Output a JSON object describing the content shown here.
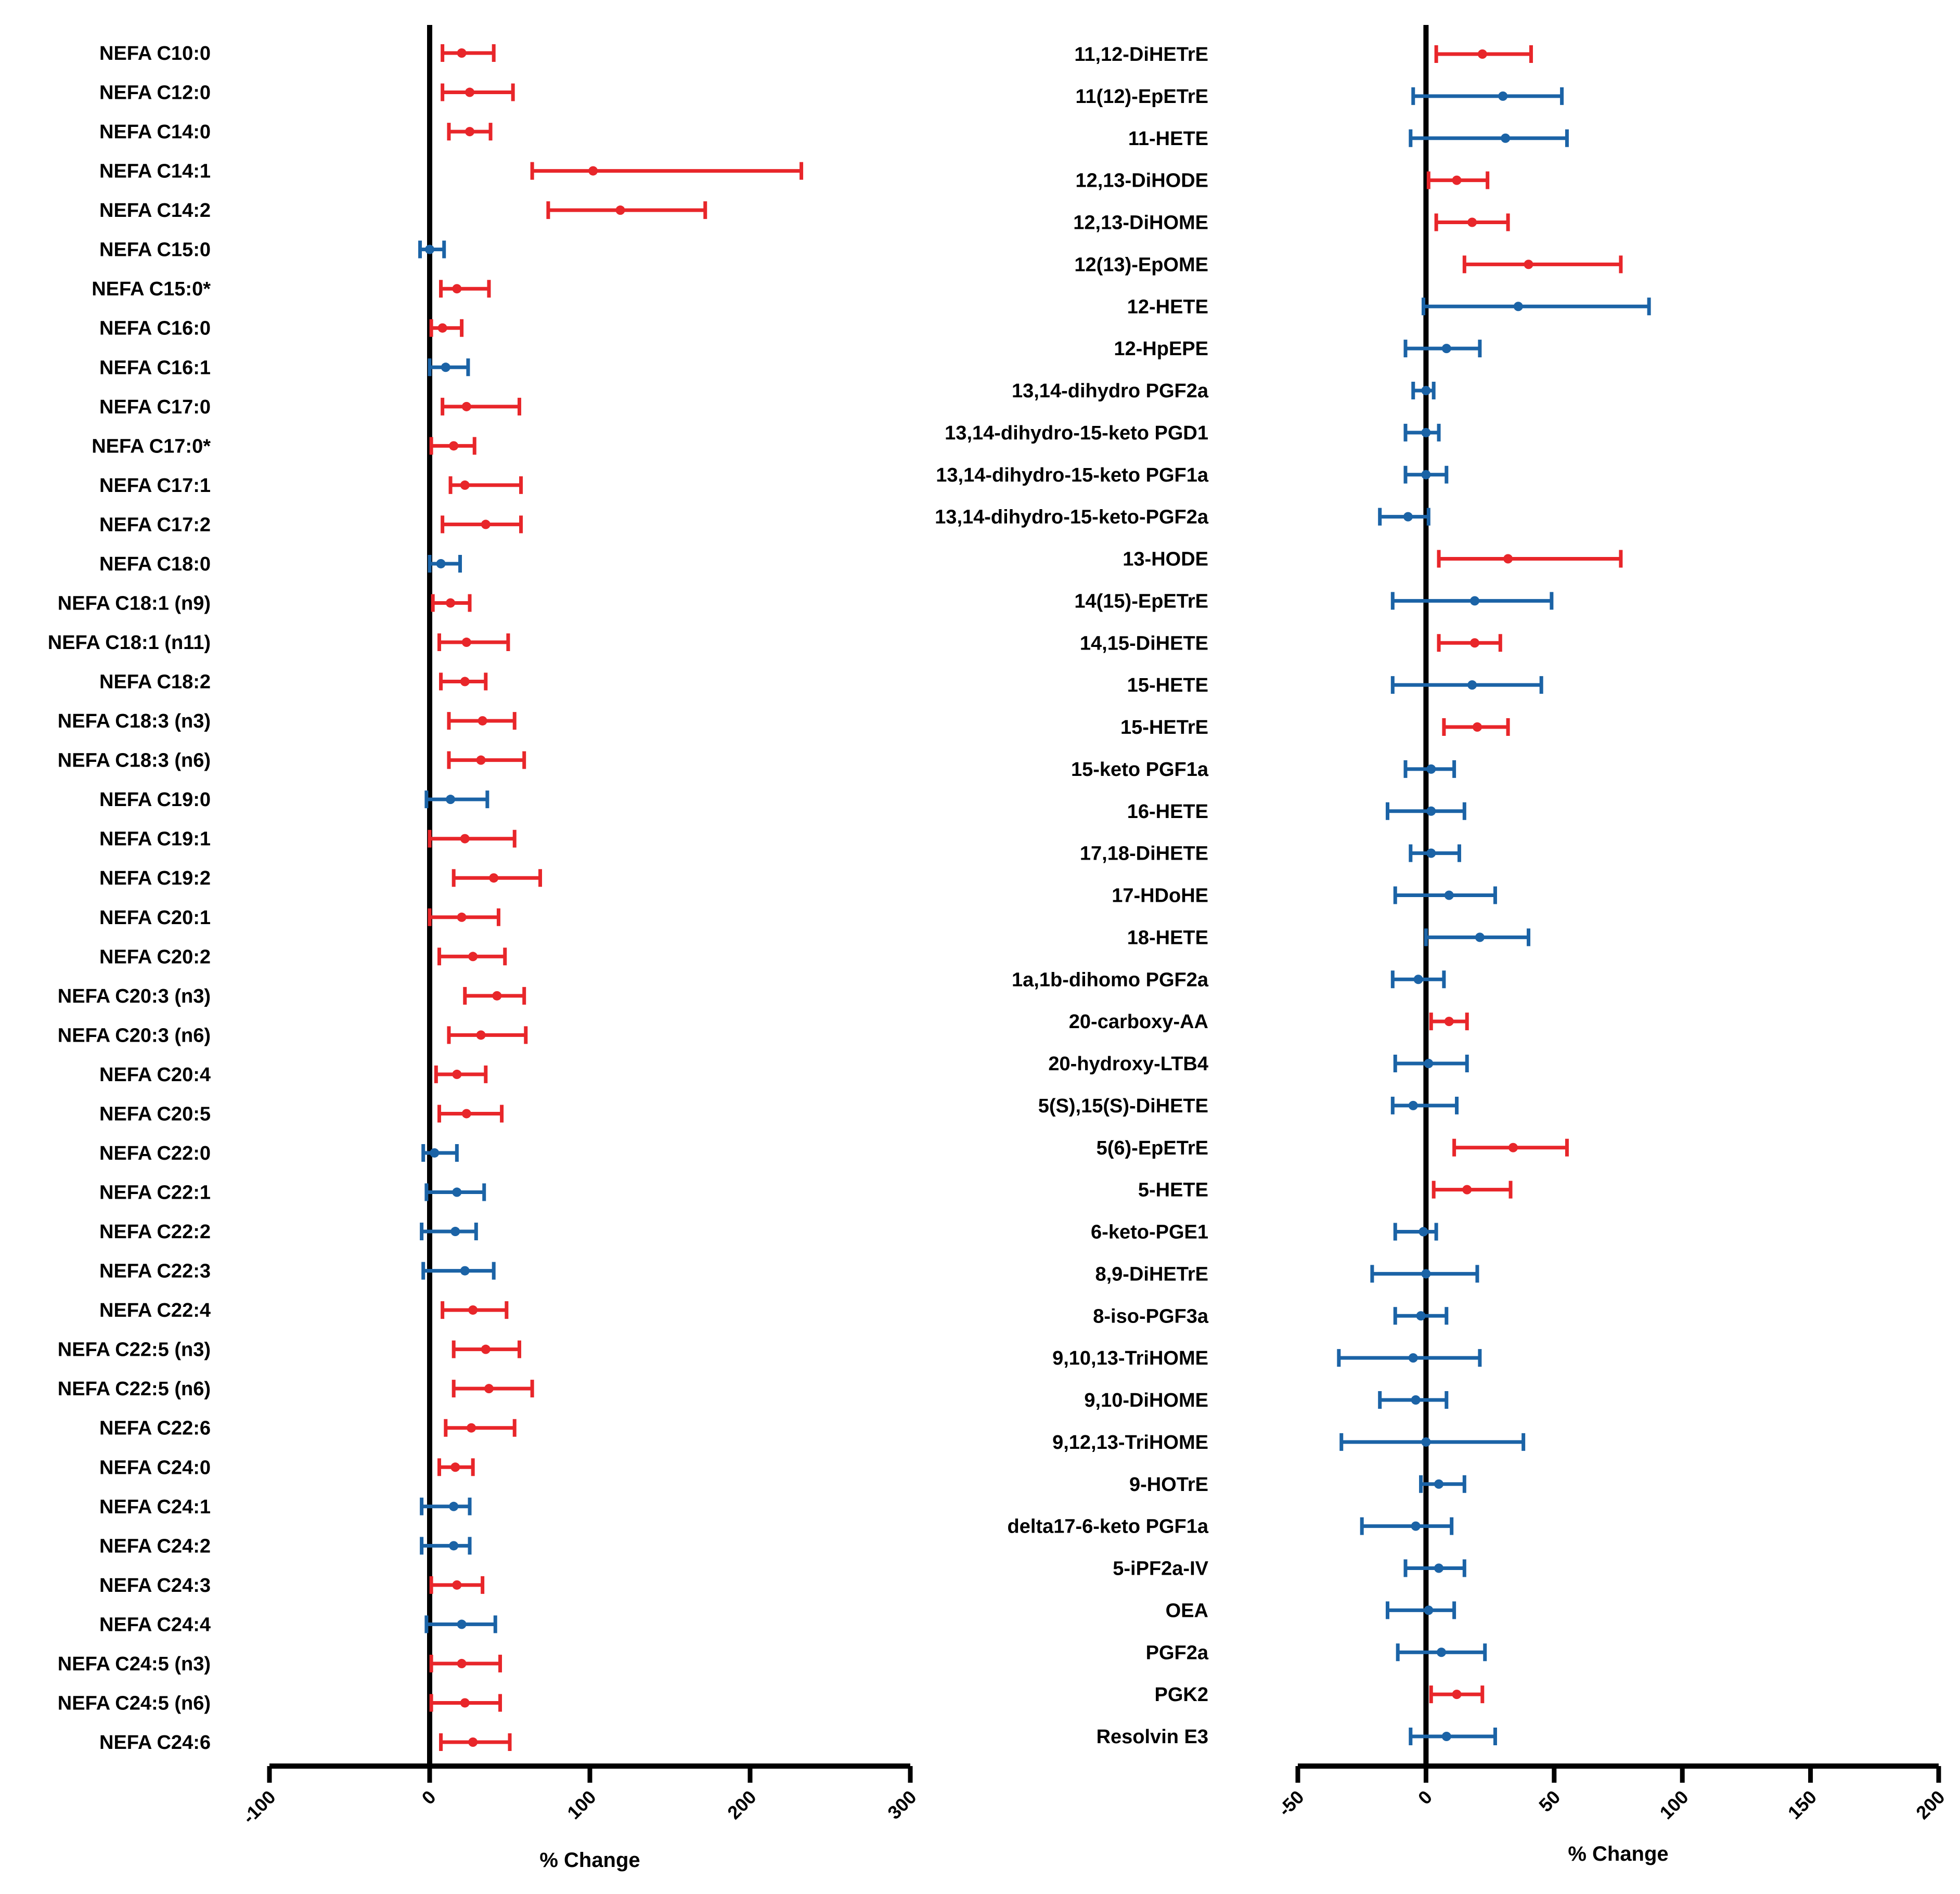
{
  "colors": {
    "increase": "#e8262a",
    "decrease": "#1b63a6",
    "axis": "#000000"
  },
  "chart_data": [
    {
      "type": "forest",
      "xlabel": "% Change",
      "xlim": [
        -100,
        300
      ],
      "xticks": [
        "-100",
        "0",
        "100",
        "200",
        "300"
      ],
      "grid": false,
      "rows": [
        {
          "label": "NEFA C10:0",
          "mean": 20,
          "lo": 8,
          "hi": 40,
          "color": "red"
        },
        {
          "label": "NEFA C12:0",
          "mean": 25,
          "lo": 8,
          "hi": 52,
          "color": "red"
        },
        {
          "label": "NEFA C14:0",
          "mean": 25,
          "lo": 12,
          "hi": 38,
          "color": "red"
        },
        {
          "label": "NEFA C14:1",
          "mean": 102,
          "lo": 64,
          "hi": 232,
          "color": "red"
        },
        {
          "label": "NEFA C14:2",
          "mean": 119,
          "lo": 74,
          "hi": 172,
          "color": "red"
        },
        {
          "label": "NEFA C15:0",
          "mean": 0,
          "lo": -6,
          "hi": 9,
          "color": "blue"
        },
        {
          "label": "NEFA C15:0*",
          "mean": 17,
          "lo": 7,
          "hi": 37,
          "color": "red"
        },
        {
          "label": "NEFA C16:0",
          "mean": 8,
          "lo": 1,
          "hi": 20,
          "color": "red"
        },
        {
          "label": "NEFA C16:1",
          "mean": 10,
          "lo": 0,
          "hi": 24,
          "color": "blue"
        },
        {
          "label": "NEFA C17:0",
          "mean": 23,
          "lo": 8,
          "hi": 56,
          "color": "red"
        },
        {
          "label": "NEFA C17:0*",
          "mean": 15,
          "lo": 1,
          "hi": 28,
          "color": "red"
        },
        {
          "label": "NEFA C17:1",
          "mean": 22,
          "lo": 13,
          "hi": 57,
          "color": "red"
        },
        {
          "label": "NEFA C17:2",
          "mean": 35,
          "lo": 8,
          "hi": 57,
          "color": "red"
        },
        {
          "label": "NEFA C18:0",
          "mean": 7,
          "lo": 0,
          "hi": 19,
          "color": "blue"
        },
        {
          "label": "NEFA C18:1 (n9)",
          "mean": 13,
          "lo": 2,
          "hi": 25,
          "color": "red"
        },
        {
          "label": "NEFA C18:1 (n11)",
          "mean": 23,
          "lo": 6,
          "hi": 49,
          "color": "red"
        },
        {
          "label": "NEFA C18:2",
          "mean": 22,
          "lo": 7,
          "hi": 35,
          "color": "red"
        },
        {
          "label": "NEFA C18:3 (n3)",
          "mean": 33,
          "lo": 12,
          "hi": 53,
          "color": "red"
        },
        {
          "label": "NEFA C18:3 (n6)",
          "mean": 32,
          "lo": 12,
          "hi": 59,
          "color": "red"
        },
        {
          "label": "NEFA C19:0",
          "mean": 13,
          "lo": -2,
          "hi": 36,
          "color": "blue"
        },
        {
          "label": "NEFA C19:1",
          "mean": 22,
          "lo": 0,
          "hi": 53,
          "color": "red"
        },
        {
          "label": "NEFA C19:2",
          "mean": 40,
          "lo": 15,
          "hi": 69,
          "color": "red"
        },
        {
          "label": "NEFA C20:1",
          "mean": 20,
          "lo": 0,
          "hi": 43,
          "color": "red"
        },
        {
          "label": "NEFA C20:2",
          "mean": 27,
          "lo": 6,
          "hi": 47,
          "color": "red"
        },
        {
          "label": "NEFA C20:3 (n3)",
          "mean": 42,
          "lo": 22,
          "hi": 59,
          "color": "red"
        },
        {
          "label": "NEFA C20:3 (n6)",
          "mean": 32,
          "lo": 12,
          "hi": 60,
          "color": "red"
        },
        {
          "label": "NEFA C20:4",
          "mean": 17,
          "lo": 4,
          "hi": 35,
          "color": "red"
        },
        {
          "label": "NEFA C20:5",
          "mean": 23,
          "lo": 6,
          "hi": 45,
          "color": "red"
        },
        {
          "label": "NEFA C22:0",
          "mean": 3,
          "lo": -4,
          "hi": 17,
          "color": "blue"
        },
        {
          "label": "NEFA C22:1",
          "mean": 17,
          "lo": -2,
          "hi": 34,
          "color": "blue"
        },
        {
          "label": "NEFA C22:2",
          "mean": 16,
          "lo": -5,
          "hi": 29,
          "color": "blue"
        },
        {
          "label": "NEFA C22:3",
          "mean": 22,
          "lo": -4,
          "hi": 40,
          "color": "blue"
        },
        {
          "label": "NEFA C22:4",
          "mean": 27,
          "lo": 8,
          "hi": 48,
          "color": "red"
        },
        {
          "label": "NEFA C22:5 (n3)",
          "mean": 35,
          "lo": 15,
          "hi": 56,
          "color": "red"
        },
        {
          "label": "NEFA C22:5 (n6)",
          "mean": 37,
          "lo": 15,
          "hi": 64,
          "color": "red"
        },
        {
          "label": "NEFA C22:6",
          "mean": 26,
          "lo": 10,
          "hi": 53,
          "color": "red"
        },
        {
          "label": "NEFA C24:0",
          "mean": 16,
          "lo": 6,
          "hi": 27,
          "color": "red"
        },
        {
          "label": "NEFA C24:1",
          "mean": 15,
          "lo": -5,
          "hi": 25,
          "color": "blue"
        },
        {
          "label": "NEFA C24:2",
          "mean": 15,
          "lo": -5,
          "hi": 25,
          "color": "blue"
        },
        {
          "label": "NEFA C24:3",
          "mean": 17,
          "lo": 1,
          "hi": 33,
          "color": "red"
        },
        {
          "label": "NEFA C24:4",
          "mean": 20,
          "lo": -2,
          "hi": 41,
          "color": "blue"
        },
        {
          "label": "NEFA C24:5 (n3)",
          "mean": 20,
          "lo": 1,
          "hi": 44,
          "color": "red"
        },
        {
          "label": "NEFA C24:5 (n6)",
          "mean": 22,
          "lo": 1,
          "hi": 44,
          "color": "red"
        },
        {
          "label": "NEFA C24:6",
          "mean": 27,
          "lo": 7,
          "hi": 50,
          "color": "red"
        }
      ]
    },
    {
      "type": "forest",
      "xlabel": "% Change",
      "xlim": [
        -50,
        200
      ],
      "xticks": [
        "-50",
        "0",
        "50",
        "100",
        "150",
        "200"
      ],
      "grid": false,
      "rows": [
        {
          "label": "11,12-DiHETrE",
          "mean": 22,
          "lo": 4,
          "hi": 41,
          "color": "red"
        },
        {
          "label": "11(12)-EpETrE",
          "mean": 30,
          "lo": -5,
          "hi": 53,
          "color": "blue"
        },
        {
          "label": "11-HETE",
          "mean": 31,
          "lo": -6,
          "hi": 55,
          "color": "blue"
        },
        {
          "label": "12,13-DiHODE",
          "mean": 12,
          "lo": 1,
          "hi": 24,
          "color": "red"
        },
        {
          "label": "12,13-DiHOME",
          "mean": 18,
          "lo": 4,
          "hi": 32,
          "color": "red"
        },
        {
          "label": "12(13)-EpOME",
          "mean": 40,
          "lo": 15,
          "hi": 76,
          "color": "red"
        },
        {
          "label": "12-HETE",
          "mean": 36,
          "lo": -1,
          "hi": 87,
          "color": "blue"
        },
        {
          "label": "12-HpEPE",
          "mean": 8,
          "lo": -8,
          "hi": 21,
          "color": "blue"
        },
        {
          "label": "13,14-dihydro PGF2a",
          "mean": 0,
          "lo": -5,
          "hi": 3,
          "color": "blue"
        },
        {
          "label": "13,14-dihydro-15-keto PGD1",
          "mean": 0,
          "lo": -8,
          "hi": 5,
          "color": "blue"
        },
        {
          "label": "13,14-dihydro-15-keto PGF1a",
          "mean": 0,
          "lo": -8,
          "hi": 8,
          "color": "blue"
        },
        {
          "label": "13,14-dihydro-15-keto-PGF2a",
          "mean": -7,
          "lo": -18,
          "hi": 1,
          "color": "blue"
        },
        {
          "label": "13-HODE",
          "mean": 32,
          "lo": 5,
          "hi": 76,
          "color": "red"
        },
        {
          "label": "14(15)-EpETrE",
          "mean": 19,
          "lo": -13,
          "hi": 49,
          "color": "blue"
        },
        {
          "label": "14,15-DiHETE",
          "mean": 19,
          "lo": 5,
          "hi": 29,
          "color": "red"
        },
        {
          "label": "15-HETE",
          "mean": 18,
          "lo": -13,
          "hi": 45,
          "color": "blue"
        },
        {
          "label": "15-HETrE",
          "mean": 20,
          "lo": 7,
          "hi": 32,
          "color": "red"
        },
        {
          "label": "15-keto PGF1a",
          "mean": 2,
          "lo": -8,
          "hi": 11,
          "color": "blue"
        },
        {
          "label": "16-HETE",
          "mean": 2,
          "lo": -15,
          "hi": 15,
          "color": "blue"
        },
        {
          "label": "17,18-DiHETE",
          "mean": 2,
          "lo": -6,
          "hi": 13,
          "color": "blue"
        },
        {
          "label": "17-HDoHE",
          "mean": 9,
          "lo": -12,
          "hi": 27,
          "color": "blue"
        },
        {
          "label": "18-HETE",
          "mean": 21,
          "lo": 0,
          "hi": 40,
          "color": "blue"
        },
        {
          "label": "1a,1b-dihomo PGF2a",
          "mean": -3,
          "lo": -13,
          "hi": 7,
          "color": "blue"
        },
        {
          "label": "20-carboxy-AA",
          "mean": 9,
          "lo": 2,
          "hi": 16,
          "color": "red"
        },
        {
          "label": "20-hydroxy-LTB4",
          "mean": 1,
          "lo": -12,
          "hi": 16,
          "color": "blue"
        },
        {
          "label": "5(S),15(S)-DiHETE",
          "mean": -5,
          "lo": -13,
          "hi": 12,
          "color": "blue"
        },
        {
          "label": "5(6)-EpETrE",
          "mean": 34,
          "lo": 11,
          "hi": 55,
          "color": "red"
        },
        {
          "label": "5-HETE",
          "mean": 16,
          "lo": 3,
          "hi": 33,
          "color": "red"
        },
        {
          "label": "6-keto-PGE1",
          "mean": -1,
          "lo": -12,
          "hi": 4,
          "color": "blue"
        },
        {
          "label": "8,9-DiHETrE",
          "mean": 0,
          "lo": -21,
          "hi": 20,
          "color": "blue"
        },
        {
          "label": "8-iso-PGF3a",
          "mean": -2,
          "lo": -12,
          "hi": 8,
          "color": "blue"
        },
        {
          "label": "9,10,13-TriHOME",
          "mean": -5,
          "lo": -34,
          "hi": 21,
          "color": "blue"
        },
        {
          "label": "9,10-DiHOME",
          "mean": -4,
          "lo": -18,
          "hi": 8,
          "color": "blue"
        },
        {
          "label": "9,12,13-TriHOME",
          "mean": 0,
          "lo": -33,
          "hi": 38,
          "color": "blue"
        },
        {
          "label": "9-HOTrE",
          "mean": 5,
          "lo": -2,
          "hi": 15,
          "color": "blue"
        },
        {
          "label": "delta17-6-keto PGF1a",
          "mean": -4,
          "lo": -25,
          "hi": 10,
          "color": "blue"
        },
        {
          "label": "5-iPF2a-IV",
          "mean": 5,
          "lo": -8,
          "hi": 15,
          "color": "blue"
        },
        {
          "label": "OEA",
          "mean": 1,
          "lo": -15,
          "hi": 11,
          "color": "blue"
        },
        {
          "label": "PGF2a",
          "mean": 6,
          "lo": -11,
          "hi": 23,
          "color": "blue"
        },
        {
          "label": "PGK2",
          "mean": 12,
          "lo": 2,
          "hi": 22,
          "color": "red"
        },
        {
          "label": "Resolvin E3",
          "mean": 8,
          "lo": -6,
          "hi": 27,
          "color": "blue"
        }
      ]
    }
  ]
}
